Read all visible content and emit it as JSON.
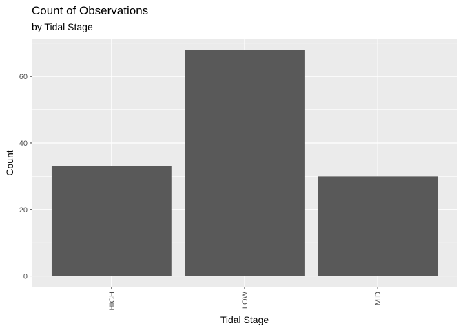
{
  "chart_data": {
    "type": "bar",
    "title": "Count of Observations",
    "subtitle": "by Tidal Stage",
    "xlabel": "Tidal Stage",
    "ylabel": "Count",
    "categories": [
      "HIGH",
      "LOW",
      "MID"
    ],
    "values": [
      33,
      68,
      30
    ],
    "ylim": [
      -3.4,
      71.4
    ],
    "yticks": [
      0,
      20,
      40,
      60
    ],
    "grid": true,
    "bar_color": "#595959",
    "panel_color": "#ebebeb",
    "grid_color": "#ffffff"
  }
}
